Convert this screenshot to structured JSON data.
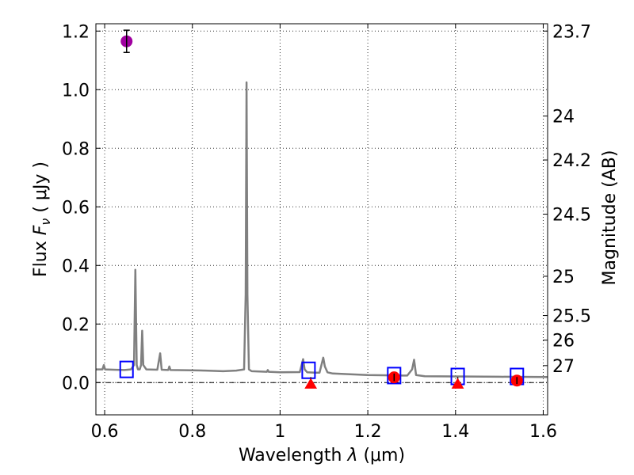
{
  "chart_data": {
    "type": "line",
    "xlabel": "Wavelength  λ (μm)",
    "ylabel": "Flux  F_ν  ( μJy )",
    "ylabel_right": "Magnitude (AB)",
    "xlim": [
      0.58,
      1.61
    ],
    "ylim": [
      -0.11,
      1.225
    ],
    "grid": true,
    "x_ticks": [
      0.6,
      0.8,
      1.0,
      1.2,
      1.4,
      1.6
    ],
    "x_tick_labels": [
      "0.6",
      "0.8",
      "1",
      "1.2",
      "1.4",
      "1.6"
    ],
    "y_ticks": [
      0.0,
      0.2,
      0.4,
      0.6,
      0.8,
      1.0,
      1.2
    ],
    "y_tick_labels": [
      "0.0",
      "0.2",
      "0.4",
      "0.6",
      "0.8",
      "1.0",
      "1.2"
    ],
    "right_ticks": [
      {
        "label": "23.7",
        "flux": 1.2
      },
      {
        "label": "24",
        "flux": 0.91
      },
      {
        "label": "24.2",
        "flux": 0.76
      },
      {
        "label": "24.5",
        "flux": 0.575
      },
      {
        "label": "25",
        "flux": 0.363
      },
      {
        "label": "25.5",
        "flux": 0.229
      },
      {
        "label": "26",
        "flux": 0.145
      },
      {
        "label": "27",
        "flux": 0.058
      }
    ],
    "zero_line": 0.0,
    "series": [
      {
        "style": "model-spectrum",
        "color": "#808080",
        "x": [
          0.58,
          0.595,
          0.598,
          0.601,
          0.62,
          0.645,
          0.66,
          0.667,
          0.67,
          0.673,
          0.676,
          0.68,
          0.683,
          0.6855,
          0.688,
          0.695,
          0.72,
          0.7265,
          0.73,
          0.745,
          0.7475,
          0.75,
          0.8,
          0.83,
          0.87,
          0.9,
          0.918,
          0.9215,
          0.9235,
          0.9255,
          0.929,
          0.935,
          0.97,
          0.972,
          0.974,
          1.0,
          1.045,
          1.0525,
          1.056,
          1.062,
          1.08,
          1.09,
          1.0985,
          1.102,
          1.108,
          1.12,
          1.2,
          1.29,
          1.301,
          1.3055,
          1.31,
          1.33,
          1.4,
          1.5,
          1.61
        ],
        "y": [
          0.045,
          0.045,
          0.06,
          0.045,
          0.044,
          0.043,
          0.045,
          0.06,
          0.385,
          0.06,
          0.045,
          0.045,
          0.06,
          0.177,
          0.06,
          0.045,
          0.044,
          0.1,
          0.044,
          0.043,
          0.055,
          0.043,
          0.042,
          0.041,
          0.039,
          0.041,
          0.045,
          0.3,
          1.025,
          0.3,
          0.045,
          0.039,
          0.037,
          0.043,
          0.037,
          0.035,
          0.036,
          0.08,
          0.045,
          0.035,
          0.034,
          0.034,
          0.085,
          0.055,
          0.035,
          0.031,
          0.026,
          0.024,
          0.045,
          0.078,
          0.026,
          0.022,
          0.021,
          0.02,
          0.019
        ]
      },
      {
        "style": "synthetic-photometry",
        "marker": "open-square",
        "color": "#0000ff",
        "x": [
          0.65,
          1.065,
          1.26,
          1.405,
          1.54
        ],
        "y": [
          0.045,
          0.042,
          0.024,
          0.021,
          0.021
        ]
      },
      {
        "style": "detection",
        "marker": "circle",
        "color": "#a000a0",
        "x": [
          0.65
        ],
        "y": [
          1.165
        ],
        "err": [
          0.038
        ]
      },
      {
        "style": "detection",
        "marker": "circle",
        "color": "#ff0000",
        "x": [
          1.26,
          1.54
        ],
        "y": [
          0.018,
          0.007
        ],
        "err": [
          0.013,
          0.012
        ]
      },
      {
        "style": "upper-limit",
        "marker": "triangle",
        "color": "#ff0000",
        "x": [
          1.07,
          1.405
        ],
        "y": [
          -0.003,
          -0.003
        ]
      }
    ]
  }
}
